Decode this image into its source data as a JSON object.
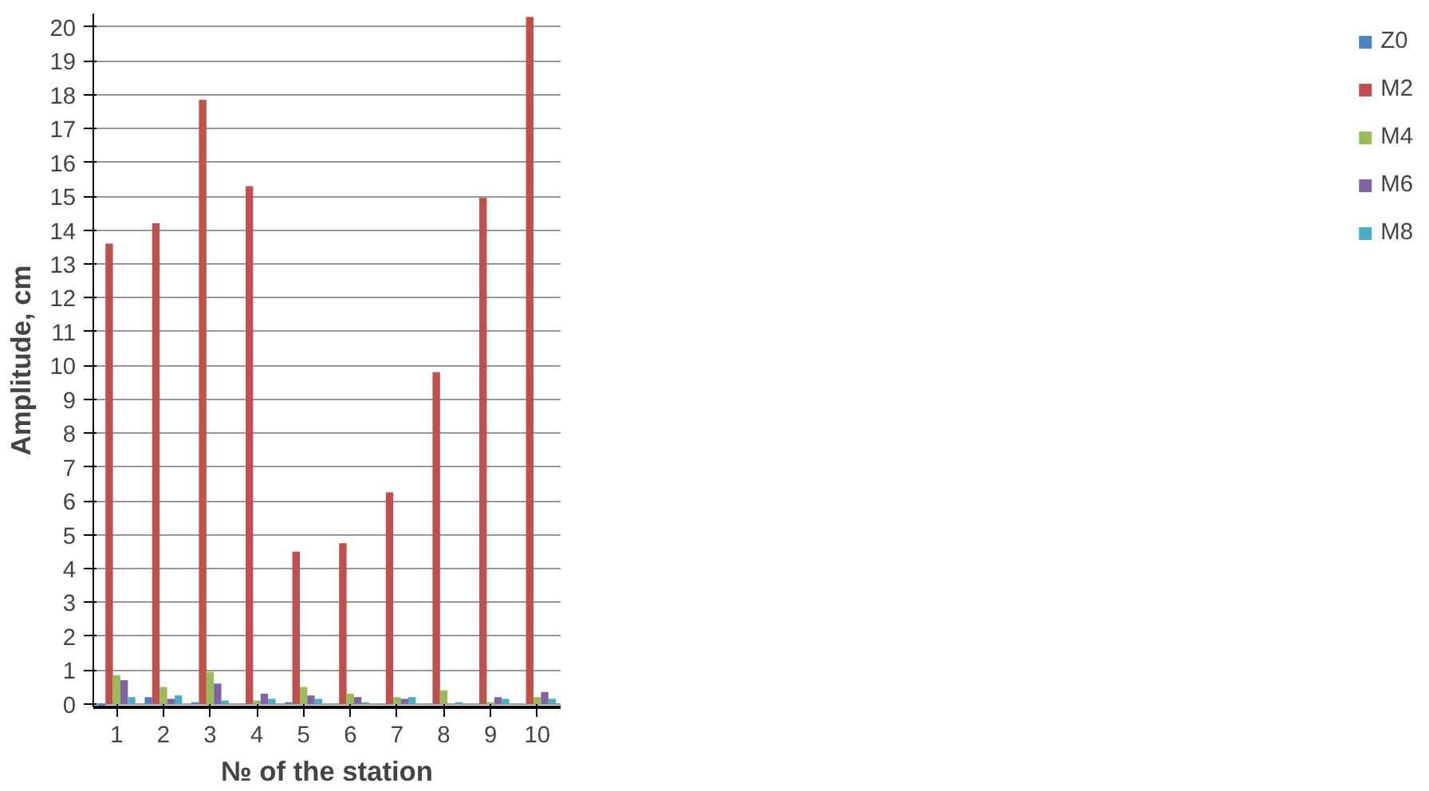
{
  "chart_data": {
    "type": "bar",
    "xlabel": "№ of the station",
    "ylabel": "Amplitude, cm",
    "categories": [
      "1",
      "2",
      "3",
      "4",
      "5",
      "6",
      "7",
      "8",
      "9",
      "10"
    ],
    "series": [
      {
        "name": "Z0",
        "color": "#4f81bd",
        "values": [
          -0.05,
          0.2,
          0.05,
          0,
          0.05,
          0,
          0,
          0,
          0,
          0
        ]
      },
      {
        "name": "M2",
        "color": "#c0504d",
        "values": [
          13.6,
          14.2,
          17.85,
          15.3,
          4.5,
          4.75,
          6.25,
          9.8,
          14.95,
          20.3
        ]
      },
      {
        "name": "M4",
        "color": "#9bbb59",
        "values": [
          0.85,
          0.5,
          0.95,
          0.1,
          0.5,
          0.3,
          0.2,
          0.4,
          0.05,
          0.2
        ]
      },
      {
        "name": "M6",
        "color": "#8064a2",
        "values": [
          0.7,
          0.15,
          0.6,
          0.3,
          0.25,
          0.2,
          0.15,
          0,
          0.2,
          0.35
        ]
      },
      {
        "name": "M8",
        "color": "#4bacc6",
        "values": [
          0.2,
          0.25,
          0.1,
          0.15,
          0.15,
          0.05,
          0.2,
          0.05,
          0.15,
          0.15
        ]
      }
    ],
    "ylim": [
      -0.1,
      20.4
    ],
    "yticks": [
      0,
      1,
      2,
      3,
      4,
      5,
      6,
      7,
      8,
      9,
      10,
      11,
      12,
      13,
      14,
      15,
      16,
      17,
      18,
      19,
      20
    ],
    "grid": "y",
    "legend": "right"
  }
}
